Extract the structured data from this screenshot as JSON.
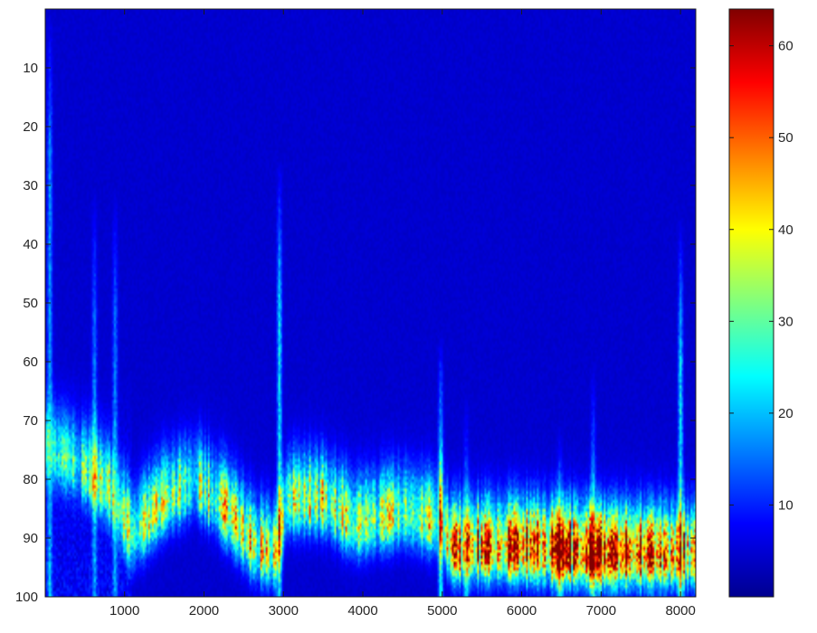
{
  "chart_data": {
    "type": "heatmap",
    "title": "",
    "xlabel": "",
    "ylabel": "",
    "xlim": [
      1,
      8192
    ],
    "ylim": [
      0,
      100
    ],
    "y_reversed": true,
    "x_ticks": [
      1000,
      2000,
      3000,
      4000,
      5000,
      6000,
      7000,
      8000
    ],
    "y_ticks": [
      10,
      20,
      30,
      40,
      50,
      60,
      70,
      80,
      90,
      100
    ],
    "colormap": "jet",
    "colorbar": {
      "range": [
        0,
        64
      ],
      "ticks": [
        10,
        20,
        30,
        40,
        50,
        60
      ],
      "placement": "right"
    },
    "grid": false,
    "features": {
      "ridge_y": [
        [
          0,
          75
        ],
        [
          400,
          78
        ],
        [
          800,
          82
        ],
        [
          1100,
          90
        ],
        [
          1500,
          84
        ],
        [
          1900,
          81
        ],
        [
          2300,
          86
        ],
        [
          2650,
          92
        ],
        [
          2900,
          93
        ],
        [
          3050,
          84
        ],
        [
          3500,
          84
        ],
        [
          3900,
          88
        ],
        [
          4200,
          87
        ],
        [
          4500,
          86
        ],
        [
          5000,
          88
        ],
        [
          5100,
          92
        ],
        [
          6000,
          92
        ],
        [
          7000,
          93
        ],
        [
          8192,
          93
        ]
      ],
      "ridge_peak": [
        [
          0,
          16
        ],
        [
          1000,
          30
        ],
        [
          1900,
          28
        ],
        [
          2600,
          40
        ],
        [
          2900,
          32
        ],
        [
          3500,
          34
        ],
        [
          4500,
          28
        ],
        [
          5050,
          34
        ],
        [
          5200,
          48
        ],
        [
          6000,
          50
        ],
        [
          6500,
          58
        ],
        [
          6800,
          62
        ],
        [
          7050,
          60
        ],
        [
          7400,
          52
        ],
        [
          7900,
          46
        ],
        [
          8192,
          44
        ]
      ],
      "vertical_streaks": [
        {
          "x": 60,
          "top": 0,
          "peak": 16
        },
        {
          "x": 620,
          "top": 30,
          "peak": 14
        },
        {
          "x": 880,
          "top": 30,
          "peak": 14
        },
        {
          "x": 2950,
          "top": 25,
          "peak": 22
        },
        {
          "x": 4980,
          "top": 55,
          "peak": 26
        },
        {
          "x": 5300,
          "top": 65,
          "peak": 16
        },
        {
          "x": 6480,
          "top": 70,
          "peak": 18
        },
        {
          "x": 6900,
          "top": 60,
          "peak": 18
        },
        {
          "x": 8000,
          "top": 35,
          "peak": 22
        }
      ]
    }
  }
}
